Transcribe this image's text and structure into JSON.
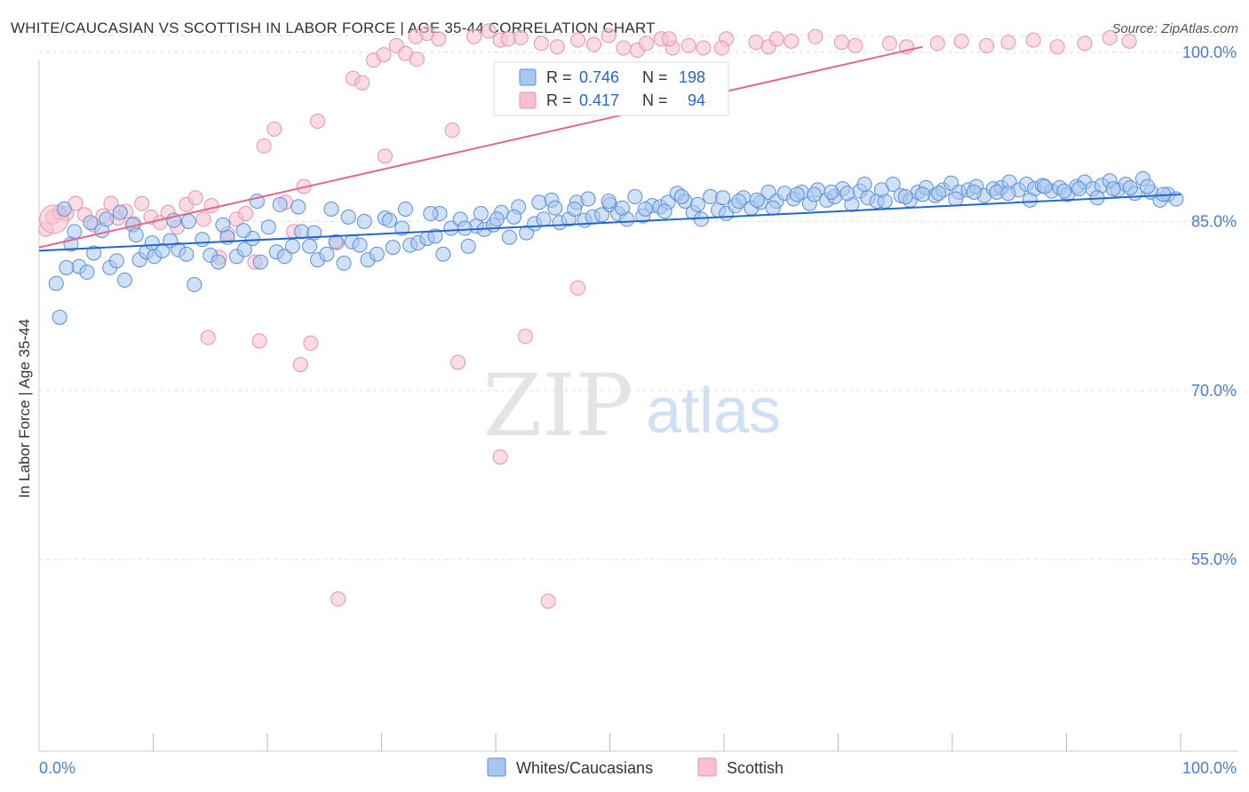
{
  "header": {
    "title": "WHITE/CAUCASIAN VS SCOTTISH IN LABOR FORCE | AGE 35-44 CORRELATION CHART",
    "source": "Source: ZipAtlas.com"
  },
  "watermark": {
    "zip": "ZIP",
    "atlas": "atlas"
  },
  "colors": {
    "blue_fill": "#a8c6f0",
    "blue_stroke": "#5b8fd8",
    "blue_line": "#2566c8",
    "pink_fill": "#f8c0d0",
    "pink_stroke": "#e991ac",
    "pink_line": "#e0688f",
    "tick_text": "#4a7bd0",
    "grid": "#dddddd"
  },
  "chart_data": {
    "type": "scatter",
    "title": "WHITE/CAUCASIAN VS SCOTTISH IN LABOR FORCE | AGE 35-44 CORRELATION CHART",
    "xlabel": "",
    "ylabel": "In Labor Force | Age 35-44",
    "xlim": [
      0,
      100
    ],
    "ylim": [
      38,
      101.5
    ],
    "x_tick_labels": [
      "0.0%",
      "100.0%"
    ],
    "y_ticks": [
      55,
      70,
      85,
      100
    ],
    "y_tick_labels": [
      "55.0%",
      "70.0%",
      "85.0%",
      "100.0%"
    ],
    "grid": "horizontal dashed",
    "legend_position": "top-center",
    "stats": [
      {
        "series": "Whites/Caucasians",
        "R_label": "R =",
        "R": "0.746",
        "N_label": "N =",
        "N": "198"
      },
      {
        "series": "Scottish",
        "R_label": "R =",
        "R": "0.417",
        "N_label": "N =",
        "N": "94"
      }
    ],
    "series": [
      {
        "name": "Whites/Caucasians",
        "color": "#5b8fd8",
        "trend": {
          "x": [
            0,
            100
          ],
          "y": [
            82.4,
            87.4
          ]
        },
        "points": [
          [
            1.5,
            79.5
          ],
          [
            2.8,
            83
          ],
          [
            3.5,
            81
          ],
          [
            4.2,
            80.5
          ],
          [
            1.8,
            76.5
          ],
          [
            2.4,
            80.9
          ],
          [
            4.8,
            82.2
          ],
          [
            5.5,
            84.2
          ],
          [
            6.2,
            80.9
          ],
          [
            6.8,
            81.5
          ],
          [
            7.5,
            79.8
          ],
          [
            8.2,
            84.7
          ],
          [
            8.8,
            81.6
          ],
          [
            9.4,
            82.3
          ],
          [
            10.1,
            81.9
          ],
          [
            10.8,
            82.4
          ],
          [
            11.5,
            83.3
          ],
          [
            12.2,
            82.5
          ],
          [
            12.9,
            82.1
          ],
          [
            13.6,
            79.4
          ],
          [
            14.3,
            83.4
          ],
          [
            15,
            82
          ],
          [
            15.7,
            81.4
          ],
          [
            16.5,
            83.6
          ],
          [
            17.3,
            81.9
          ],
          [
            18,
            82.5
          ],
          [
            18.7,
            83.5
          ],
          [
            19.4,
            81.4
          ],
          [
            20.1,
            84.5
          ],
          [
            20.8,
            82.3
          ],
          [
            21.5,
            81.9
          ],
          [
            22.2,
            82.8
          ],
          [
            23,
            84.1
          ],
          [
            23.7,
            82.8
          ],
          [
            24.4,
            81.6
          ],
          [
            25.2,
            82.1
          ],
          [
            26,
            83.2
          ],
          [
            26.7,
            81.3
          ],
          [
            27.4,
            83.2
          ],
          [
            28.1,
            82.9
          ],
          [
            28.8,
            81.6
          ],
          [
            29.6,
            82.1
          ],
          [
            30.3,
            85.3
          ],
          [
            31,
            82.7
          ],
          [
            31.8,
            84.4
          ],
          [
            32.5,
            82.9
          ],
          [
            33.2,
            83.1
          ],
          [
            34,
            83.5
          ],
          [
            34.7,
            83.7
          ],
          [
            35.4,
            82.1
          ],
          [
            36.1,
            84.4
          ],
          [
            36.9,
            85.2
          ],
          [
            37.6,
            82.8
          ],
          [
            38.3,
            84.6
          ],
          [
            39,
            84.3
          ],
          [
            39.8,
            84.7
          ],
          [
            40.5,
            85.8
          ],
          [
            41.2,
            83.6
          ],
          [
            42,
            86.3
          ],
          [
            42.7,
            84
          ],
          [
            43.4,
            84.8
          ],
          [
            44.2,
            85.2
          ],
          [
            44.9,
            86.9
          ],
          [
            45.6,
            84.9
          ],
          [
            46.4,
            85.2
          ],
          [
            47.1,
            86.7
          ],
          [
            47.8,
            85.1
          ],
          [
            48.5,
            85.4
          ],
          [
            49.3,
            85.6
          ],
          [
            50,
            86.5
          ],
          [
            50.7,
            85.7
          ],
          [
            51.5,
            85.2
          ],
          [
            52.2,
            87.2
          ],
          [
            52.9,
            85.5
          ],
          [
            53.7,
            86.4
          ],
          [
            54.4,
            86.3
          ],
          [
            55.1,
            86.7
          ],
          [
            55.9,
            87.5
          ],
          [
            56.6,
            86.8
          ],
          [
            57.3,
            85.8
          ],
          [
            58,
            85.2
          ],
          [
            58.8,
            87.2
          ],
          [
            59.5,
            86
          ],
          [
            60.2,
            85.7
          ],
          [
            61,
            86.4
          ],
          [
            61.7,
            87.1
          ],
          [
            62.4,
            86.2
          ],
          [
            63.2,
            86.7
          ],
          [
            63.9,
            87.6
          ],
          [
            64.6,
            86.8
          ],
          [
            65.3,
            87.5
          ],
          [
            66.1,
            87
          ],
          [
            66.8,
            87.6
          ],
          [
            67.5,
            86.6
          ],
          [
            68.2,
            87.8
          ],
          [
            69,
            86.9
          ],
          [
            69.7,
            87.2
          ],
          [
            70.4,
            87.9
          ],
          [
            71.2,
            86.5
          ],
          [
            71.9,
            87.7
          ],
          [
            72.6,
            87.1
          ],
          [
            73.4,
            86.8
          ],
          [
            74.1,
            86.8
          ],
          [
            74.8,
            88.3
          ],
          [
            75.5,
            87.3
          ],
          [
            76.3,
            86.9
          ],
          [
            77,
            87.6
          ],
          [
            77.7,
            88
          ],
          [
            78.5,
            87.3
          ],
          [
            79.2,
            87.8
          ],
          [
            79.9,
            88.4
          ],
          [
            80.6,
            87.6
          ],
          [
            81.4,
            87.8
          ],
          [
            82.1,
            88.1
          ],
          [
            82.8,
            87.3
          ],
          [
            83.6,
            87.9
          ],
          [
            84.3,
            88
          ],
          [
            85,
            88.5
          ],
          [
            85.8,
            87.8
          ],
          [
            86.5,
            88.3
          ],
          [
            87.2,
            87.9
          ],
          [
            87.9,
            88.2
          ],
          [
            88.7,
            87.7
          ],
          [
            89.4,
            88
          ],
          [
            90.1,
            87.4
          ],
          [
            90.9,
            88.1
          ],
          [
            91.6,
            88.5
          ],
          [
            92.3,
            87.9
          ],
          [
            93.1,
            88.2
          ],
          [
            93.8,
            88.6
          ],
          [
            94.5,
            87.8
          ],
          [
            95.2,
            88.3
          ],
          [
            96,
            87.5
          ],
          [
            96.7,
            88.8
          ],
          [
            97.4,
            87.6
          ],
          [
            98.2,
            86.9
          ],
          [
            98.9,
            87.4
          ],
          [
            99.6,
            87
          ],
          [
            2.2,
            86.1
          ],
          [
            3.1,
            84.1
          ],
          [
            5.9,
            85.2
          ],
          [
            7.1,
            85.8
          ],
          [
            9.9,
            83.1
          ],
          [
            13.1,
            85
          ],
          [
            16.1,
            84.7
          ],
          [
            19.1,
            86.8
          ],
          [
            22.7,
            86.3
          ],
          [
            25.6,
            86.1
          ],
          [
            28.5,
            85
          ],
          [
            32.1,
            86.1
          ],
          [
            35.1,
            85.7
          ],
          [
            38.7,
            85.7
          ],
          [
            41.6,
            85.4
          ],
          [
            45.2,
            86.2
          ],
          [
            48.1,
            87
          ],
          [
            51.1,
            86.2
          ],
          [
            54.8,
            85.9
          ],
          [
            57.7,
            86.5
          ],
          [
            61.3,
            86.8
          ],
          [
            64.3,
            86.2
          ],
          [
            67.9,
            87.4
          ],
          [
            70.8,
            87.5
          ],
          [
            73.8,
            87.8
          ],
          [
            77.4,
            87.4
          ],
          [
            80.3,
            87
          ],
          [
            83.9,
            87.6
          ],
          [
            86.8,
            86.9
          ],
          [
            89.8,
            87.7
          ],
          [
            92.7,
            87.1
          ],
          [
            95.6,
            88
          ],
          [
            98.5,
            87.4
          ],
          [
            4.5,
            84.9
          ],
          [
            8.5,
            83.8
          ],
          [
            11.8,
            85.1
          ],
          [
            17.9,
            84.2
          ],
          [
            21.1,
            86.5
          ],
          [
            24.1,
            84
          ],
          [
            27.1,
            85.4
          ],
          [
            30.7,
            85.1
          ],
          [
            34.3,
            85.7
          ],
          [
            37.3,
            84.4
          ],
          [
            40.1,
            85.2
          ],
          [
            43.8,
            86.7
          ],
          [
            46.9,
            86.1
          ],
          [
            49.9,
            86.8
          ],
          [
            53.1,
            86.1
          ],
          [
            56.3,
            87.2
          ],
          [
            59.9,
            87.1
          ],
          [
            62.9,
            86.9
          ],
          [
            66.4,
            87.4
          ],
          [
            69.4,
            87.6
          ],
          [
            72.3,
            88.3
          ],
          [
            75.9,
            87.2
          ],
          [
            78.8,
            87.5
          ],
          [
            81.9,
            87.6
          ],
          [
            84.9,
            87.5
          ],
          [
            88.1,
            88.1
          ],
          [
            91.1,
            87.9
          ],
          [
            94.1,
            87.9
          ],
          [
            97.1,
            88.1
          ]
        ]
      },
      {
        "name": "Scottish",
        "color": "#e991ac",
        "trend": {
          "x": [
            0,
            77.4
          ],
          "y": [
            82.7,
            100.5
          ]
        },
        "points": [
          [
            0.6,
            84.3
          ],
          [
            1.2,
            85.4
          ],
          [
            1.8,
            85.8
          ],
          [
            2.4,
            85.7
          ],
          [
            3.2,
            86.6
          ],
          [
            4,
            85.6
          ],
          [
            4.8,
            84.7
          ],
          [
            5.6,
            85.5
          ],
          [
            6.3,
            86.6
          ],
          [
            6.9,
            85.3
          ],
          [
            7.6,
            85.9
          ],
          [
            8.3,
            84.8
          ],
          [
            9,
            86.6
          ],
          [
            9.8,
            85.4
          ],
          [
            10.6,
            84.9
          ],
          [
            11.3,
            85.8
          ],
          [
            12.1,
            84.5
          ],
          [
            12.9,
            86.5
          ],
          [
            13.7,
            87.1
          ],
          [
            14.4,
            85.2
          ],
          [
            15.1,
            86.4
          ],
          [
            15.8,
            81.8
          ],
          [
            16.5,
            83.9
          ],
          [
            17.3,
            85.2
          ],
          [
            18.1,
            85.7
          ],
          [
            18.9,
            81.4
          ],
          [
            19.7,
            91.7
          ],
          [
            20.6,
            93.2
          ],
          [
            21.6,
            86.7
          ],
          [
            22.3,
            84.1
          ],
          [
            23.2,
            88.1
          ],
          [
            24.4,
            93.9
          ],
          [
            26.1,
            83.1
          ],
          [
            27.5,
            97.7
          ],
          [
            28.3,
            97.3
          ],
          [
            29.3,
            99.3
          ],
          [
            30.2,
            99.8
          ],
          [
            31.3,
            100.6
          ],
          [
            32.1,
            99.9
          ],
          [
            33,
            101.4
          ],
          [
            34,
            101.7
          ],
          [
            35,
            101.2
          ],
          [
            36.2,
            93.1
          ],
          [
            38.1,
            101.4
          ],
          [
            39.4,
            101.9
          ],
          [
            40.4,
            101.1
          ],
          [
            41.1,
            101.2
          ],
          [
            42.2,
            101.3
          ],
          [
            44,
            100.8
          ],
          [
            45.4,
            100.5
          ],
          [
            47.2,
            101.1
          ],
          [
            48.6,
            100.7
          ],
          [
            49.9,
            101.5
          ],
          [
            51.2,
            100.4
          ],
          [
            52.4,
            100.2
          ],
          [
            53.2,
            100.8
          ],
          [
            54.5,
            101.2
          ],
          [
            55.5,
            100.4
          ],
          [
            56.9,
            100.6
          ],
          [
            58.2,
            100.4
          ],
          [
            60.2,
            101.2
          ],
          [
            62.8,
            100.9
          ],
          [
            63.9,
            100.5
          ],
          [
            64.6,
            101.2
          ],
          [
            65.9,
            101
          ],
          [
            68,
            101.4
          ],
          [
            70.3,
            100.9
          ],
          [
            71.5,
            100.6
          ],
          [
            74.5,
            100.8
          ],
          [
            76,
            100.5
          ],
          [
            78.7,
            100.8
          ],
          [
            80.8,
            101
          ],
          [
            83,
            100.6
          ],
          [
            84.9,
            100.9
          ],
          [
            87.1,
            101.1
          ],
          [
            89.2,
            100.5
          ],
          [
            91.6,
            100.8
          ],
          [
            93.8,
            101.3
          ],
          [
            95.5,
            101
          ],
          [
            14.8,
            74.7
          ],
          [
            19.3,
            74.4
          ],
          [
            22.9,
            72.3
          ],
          [
            23.8,
            74.2
          ],
          [
            30.3,
            90.8
          ],
          [
            33.1,
            99.4
          ],
          [
            36.7,
            72.5
          ],
          [
            40.4,
            64.1
          ],
          [
            42.6,
            74.8
          ],
          [
            47.2,
            79.1
          ],
          [
            50.5,
            95.2
          ],
          [
            55.2,
            101.2
          ],
          [
            59.8,
            100.4
          ],
          [
            26.2,
            51.5
          ],
          [
            44.6,
            51.3
          ]
        ]
      }
    ]
  }
}
